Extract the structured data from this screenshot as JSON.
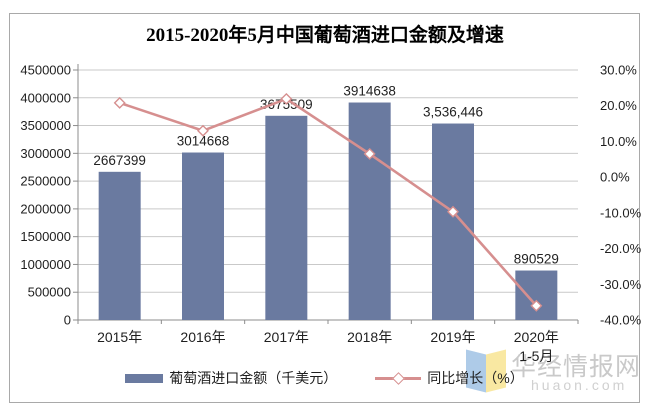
{
  "chart_data": {
    "type": "bar",
    "combo": "bar+line",
    "title": "2015-2020年5月中国葡萄酒进口金额及增速",
    "categories": [
      "2015年",
      "2016年",
      "2017年",
      "2018年",
      "2019年",
      "2020年"
    ],
    "category_sublabels": [
      "",
      "",
      "",
      "",
      "",
      "1-5月"
    ],
    "series": [
      {
        "name": "葡萄酒进口金额（千美元）",
        "type": "bar",
        "axis": "left",
        "color": "#6a7aa0",
        "values": [
          2667399,
          3014668,
          3675509,
          3914638,
          3536446,
          890529
        ],
        "labels": [
          "2667399",
          "3014668",
          "3675509",
          "3914638",
          "3,536,446",
          "890529"
        ]
      },
      {
        "name": "同比增长（%）",
        "type": "line",
        "axis": "right",
        "color": "#d68f8f",
        "marker": "white-diamond",
        "values": [
          20.8,
          13.0,
          21.9,
          6.5,
          -9.7,
          -36.0
        ]
      }
    ],
    "left_axis": {
      "min": 0,
      "max": 4500000,
      "step": 500000,
      "tick_labels": [
        "4500000",
        "4000000",
        "3500000",
        "3000000",
        "2500000",
        "2000000",
        "1500000",
        "1000000",
        "500000",
        "0"
      ]
    },
    "right_axis": {
      "min": -40,
      "max": 30,
      "step": 10,
      "tick_labels": [
        "30.0%",
        "20.0%",
        "10.0%",
        "0.0%",
        "-10.0%",
        "-20.0%",
        "-30.0%",
        "-40.0%"
      ]
    },
    "grid": true,
    "legend_position": "bottom",
    "colors": {
      "gridline": "#c9c9c9",
      "axis_line": "#8c8c8c",
      "text": "#1f1f1f"
    }
  },
  "watermark": {
    "site_name": "华经情报网",
    "site_url": "huaon.com",
    "logo_blue": "#aecbe8",
    "logo_yellow": "#f9e8a2"
  }
}
